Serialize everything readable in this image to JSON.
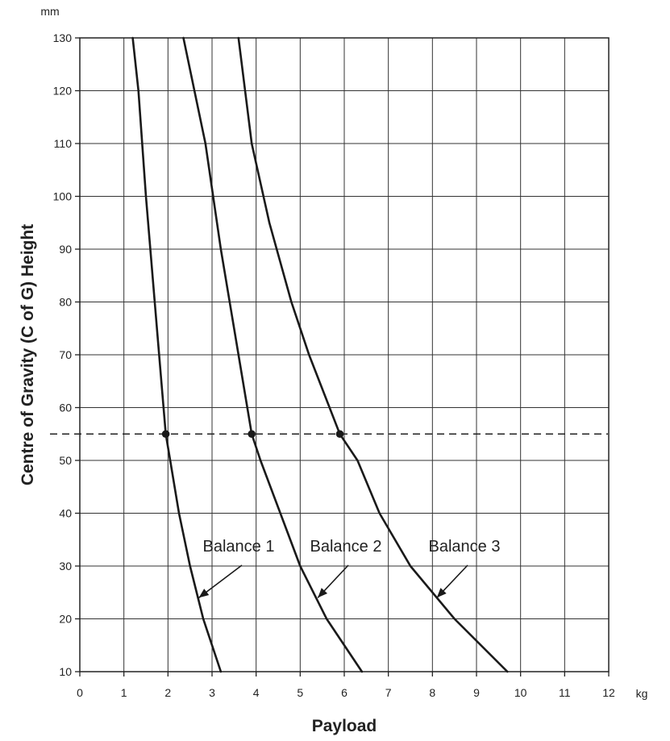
{
  "chart_data": {
    "type": "line",
    "xlabel": "Payload",
    "ylabel": "Centre of Gravity (C of G) Height",
    "x_unit": "kg",
    "y_unit": "mm",
    "xlim": [
      0,
      12
    ],
    "ylim": [
      10,
      130
    ],
    "x_ticks": [
      0,
      1,
      2,
      3,
      4,
      5,
      6,
      7,
      8,
      9,
      10,
      11,
      12
    ],
    "y_ticks": [
      10,
      20,
      30,
      40,
      50,
      60,
      70,
      80,
      90,
      100,
      110,
      120,
      130
    ],
    "grid": true,
    "series": [
      {
        "name": "Balance 1",
        "points": [
          [
            3.2,
            10
          ],
          [
            2.8,
            20
          ],
          [
            2.5,
            30
          ],
          [
            2.25,
            40
          ],
          [
            2.05,
            50
          ],
          [
            1.95,
            55
          ],
          [
            1.85,
            65
          ],
          [
            1.7,
            80
          ],
          [
            1.5,
            100
          ],
          [
            1.33,
            120
          ],
          [
            1.2,
            130
          ]
        ]
      },
      {
        "name": "Balance 2",
        "points": [
          [
            6.4,
            10
          ],
          [
            5.6,
            20
          ],
          [
            5.0,
            30
          ],
          [
            4.55,
            40
          ],
          [
            4.1,
            50
          ],
          [
            3.9,
            55
          ],
          [
            3.6,
            70
          ],
          [
            3.2,
            90
          ],
          [
            2.85,
            110
          ],
          [
            2.35,
            130
          ]
        ]
      },
      {
        "name": "Balance 3",
        "points": [
          [
            9.7,
            10
          ],
          [
            8.5,
            20
          ],
          [
            7.5,
            30
          ],
          [
            6.8,
            40
          ],
          [
            6.3,
            50
          ],
          [
            5.9,
            55
          ],
          [
            5.2,
            70
          ],
          [
            4.8,
            80
          ],
          [
            4.3,
            95
          ],
          [
            3.9,
            110
          ],
          [
            3.6,
            130
          ]
        ]
      }
    ],
    "reference_line": {
      "y": 55,
      "style": "dashed"
    },
    "intersection_points": [
      [
        1.95,
        55
      ],
      [
        3.9,
        55
      ],
      [
        5.9,
        55
      ]
    ],
    "annotations": [
      {
        "text": "Balance 1",
        "series": "Balance 1",
        "arrow_to": [
          2.7,
          24
        ]
      },
      {
        "text": "Balance 2",
        "series": "Balance 2",
        "arrow_to": [
          5.4,
          24
        ]
      },
      {
        "text": "Balance 3",
        "series": "Balance 3",
        "arrow_to": [
          8.1,
          24
        ]
      }
    ]
  }
}
